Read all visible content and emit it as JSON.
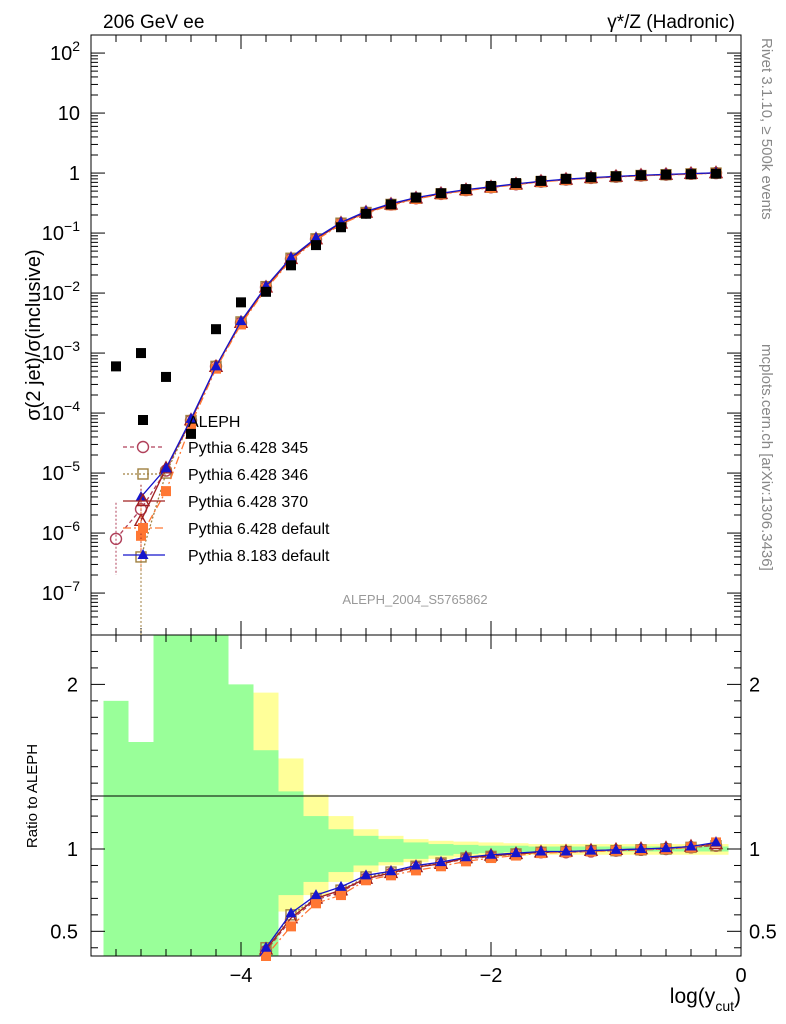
{
  "chart_data": {
    "type": "scatter",
    "top_left_label": "206 GeV ee",
    "top_right_label": "γ*/Z (Hadronic)",
    "right_label_1": "Rivet 3.1.10, ≥ 500k events",
    "right_label_2": "mcplots.cern.ch [arXiv:1306.3436]",
    "analysis_label": "ALEPH_2004_S5765862",
    "ylabel_main": "σ(2 jet)/σ(inclusive)",
    "ylabel_ratio": "Ratio to ALEPH",
    "xlabel": "log(y",
    "xlabel_sub": "cut",
    "xlabel_close": ")",
    "xlim": [
      -5.2,
      0
    ],
    "ylim_main": [
      2e-08,
      200
    ],
    "ylim_ratio": [
      0.35,
      2.3
    ],
    "x_ticks": [
      {
        "value": -4,
        "label": "−4"
      },
      {
        "value": -2,
        "label": "−2"
      },
      {
        "value": 0,
        "label": "0"
      }
    ],
    "y_ticks_main": [
      {
        "value": 100,
        "base": "10",
        "exp": "2"
      },
      {
        "value": 10,
        "base": "10",
        "exp": ""
      },
      {
        "value": 1,
        "base": "1",
        "exp": ""
      },
      {
        "value": 0.1,
        "base": "10",
        "exp": "−1"
      },
      {
        "value": 0.01,
        "base": "10",
        "exp": "−2"
      },
      {
        "value": 0.001,
        "base": "10",
        "exp": "−3"
      },
      {
        "value": 0.0001,
        "base": "10",
        "exp": "−4"
      },
      {
        "value": 1e-05,
        "base": "10",
        "exp": "−5"
      },
      {
        "value": 1e-06,
        "base": "10",
        "exp": "−6"
      },
      {
        "value": 1e-07,
        "base": "10",
        "exp": "−7"
      }
    ],
    "y_ticks_ratio": [
      {
        "value": 0.5,
        "label": "0.5"
      },
      {
        "value": 1,
        "label": "1"
      },
      {
        "value": 2,
        "label": "2"
      }
    ],
    "x": [
      -5.0,
      -4.8,
      -4.6,
      -4.4,
      -4.2,
      -4.0,
      -3.8,
      -3.6,
      -3.4,
      -3.2,
      -3.0,
      -2.8,
      -2.6,
      -2.4,
      -2.2,
      -2.0,
      -1.8,
      -1.6,
      -1.4,
      -1.2,
      -1.0,
      -0.8,
      -0.6,
      -0.4,
      -0.2
    ],
    "data": {
      "name": "ALEPH",
      "values": [
        0.0006,
        0.001,
        0.0004,
        4.5e-05,
        0.0025,
        0.007,
        0.0105,
        0.029,
        0.063,
        0.125,
        0.21,
        0.3,
        0.39,
        0.46,
        0.54,
        0.61,
        0.68,
        0.74,
        0.8,
        0.85,
        0.88,
        0.92,
        0.94,
        0.96,
        0.98
      ]
    },
    "bands": {
      "yellow": [
        [
          2.4,
          2.4
        ],
        [
          1.9,
          2.4
        ],
        [
          2.4,
          2.4
        ],
        [
          2.4,
          2.4
        ],
        [
          2.4,
          2.4
        ],
        [
          2.4,
          2.4
        ],
        [
          1.95,
          0.5
        ],
        [
          1.55,
          0.62
        ],
        [
          1.33,
          0.72
        ],
        [
          1.2,
          0.8
        ],
        [
          1.12,
          0.86
        ],
        [
          1.08,
          0.9
        ],
        [
          1.06,
          0.92
        ],
        [
          1.05,
          0.94
        ],
        [
          1.045,
          0.95
        ],
        [
          1.04,
          0.955
        ],
        [
          1.035,
          0.96
        ],
        [
          1.03,
          0.965
        ],
        [
          1.03,
          0.965
        ],
        [
          1.03,
          0.965
        ],
        [
          1.03,
          0.965
        ],
        [
          1.03,
          0.965
        ],
        [
          1.03,
          0.965
        ],
        [
          1.03,
          0.965
        ],
        [
          1.03,
          0.965
        ]
      ],
      "green": [
        [
          1.9,
          0.35
        ],
        [
          1.65,
          0.35
        ],
        [
          2.4,
          0.35
        ],
        [
          2.4,
          0.35
        ],
        [
          2.4,
          0.35
        ],
        [
          2.0,
          0.35
        ],
        [
          1.6,
          0.35
        ],
        [
          1.35,
          0.72
        ],
        [
          1.2,
          0.8
        ],
        [
          1.12,
          0.86
        ],
        [
          1.08,
          0.9
        ],
        [
          1.06,
          0.92
        ],
        [
          1.04,
          0.94
        ],
        [
          1.03,
          0.96
        ],
        [
          1.025,
          0.97
        ],
        [
          1.02,
          0.975
        ],
        [
          1.02,
          0.98
        ],
        [
          1.015,
          0.985
        ],
        [
          1.015,
          0.985
        ],
        [
          1.015,
          0.985
        ],
        [
          1.015,
          0.985
        ],
        [
          1.015,
          0.985
        ],
        [
          1.015,
          0.985
        ],
        [
          1.015,
          0.985
        ],
        [
          1.015,
          0.985
        ]
      ]
    },
    "series": [
      {
        "name": "Pythia 6.428 345",
        "color": "#b0405a",
        "marker": "open-circle",
        "dash": "4,3",
        "values": [
          8e-07,
          2.5e-06,
          1.1e-05,
          7.5e-05,
          0.0006,
          0.0032,
          0.0125,
          0.037,
          0.079,
          0.145,
          0.22,
          0.3,
          0.38,
          0.45,
          0.52,
          0.58,
          0.65,
          0.72,
          0.78,
          0.83,
          0.87,
          0.91,
          0.94,
          0.97,
          1.0
        ],
        "ratio": [
          null,
          null,
          null,
          null,
          null,
          null,
          0.38,
          0.57,
          0.69,
          0.74,
          0.82,
          0.85,
          0.89,
          0.91,
          0.94,
          0.955,
          0.97,
          0.98,
          0.98,
          0.985,
          0.99,
          0.995,
          1.0,
          1.01,
          1.02
        ]
      },
      {
        "name": "Pythia 6.428 346",
        "color": "#a08040",
        "marker": "open-square",
        "dash": "2,2",
        "values": [
          null,
          4e-07,
          1e-05,
          7.5e-05,
          0.0006,
          0.0033,
          0.0128,
          0.038,
          0.08,
          0.146,
          0.22,
          0.3,
          0.38,
          0.45,
          0.52,
          0.58,
          0.65,
          0.72,
          0.78,
          0.83,
          0.87,
          0.91,
          0.94,
          0.97,
          1.0
        ],
        "ratio": [
          null,
          null,
          null,
          null,
          null,
          null,
          0.4,
          0.6,
          0.7,
          0.75,
          0.83,
          0.86,
          0.895,
          0.915,
          0.945,
          0.955,
          0.97,
          0.98,
          0.985,
          0.99,
          0.99,
          0.995,
          1.0,
          1.01,
          1.02
        ]
      },
      {
        "name": "Pythia 6.428 370",
        "color": "#a02020",
        "marker": "open-triangle",
        "dash": "",
        "values": [
          null,
          1.6e-06,
          1.2e-05,
          7.6e-05,
          0.00059,
          0.0032,
          0.0124,
          0.037,
          0.079,
          0.145,
          0.22,
          0.3,
          0.38,
          0.45,
          0.52,
          0.58,
          0.65,
          0.72,
          0.78,
          0.83,
          0.87,
          0.91,
          0.94,
          0.97,
          1.0
        ],
        "ratio": [
          null,
          null,
          null,
          null,
          null,
          null,
          0.39,
          0.58,
          0.7,
          0.75,
          0.82,
          0.855,
          0.89,
          0.91,
          0.945,
          0.96,
          0.97,
          0.98,
          0.985,
          0.99,
          0.995,
          1.0,
          1.005,
          1.015,
          1.03
        ]
      },
      {
        "name": "Pythia 6.428 default",
        "color": "#ff7733",
        "marker": "filled-square",
        "dash": "8,3,2,3",
        "values": [
          null,
          9e-07,
          5e-06,
          6.5e-05,
          0.00055,
          0.003,
          0.0118,
          0.035,
          0.076,
          0.14,
          0.215,
          0.29,
          0.37,
          0.44,
          0.51,
          0.57,
          0.64,
          0.71,
          0.77,
          0.82,
          0.86,
          0.9,
          0.93,
          0.96,
          1.0
        ],
        "ratio": [
          null,
          null,
          null,
          null,
          null,
          null,
          0.35,
          0.53,
          0.67,
          0.72,
          0.81,
          0.84,
          0.87,
          0.895,
          0.925,
          0.945,
          0.96,
          0.975,
          0.98,
          0.985,
          0.99,
          0.995,
          1.0,
          1.01,
          1.04
        ]
      },
      {
        "name": "Pythia 8.183 default",
        "color": "#1515cc",
        "marker": "filled-triangle",
        "dash": "",
        "values": [
          null,
          4e-06,
          1.2e-05,
          8e-05,
          0.0006,
          0.0034,
          0.013,
          0.039,
          0.083,
          0.15,
          0.23,
          0.31,
          0.39,
          0.46,
          0.53,
          0.59,
          0.66,
          0.73,
          0.79,
          0.84,
          0.88,
          0.92,
          0.95,
          0.98,
          1.01
        ],
        "ratio": [
          null,
          null,
          null,
          null,
          null,
          null,
          0.4,
          0.61,
          0.72,
          0.77,
          0.84,
          0.865,
          0.9,
          0.92,
          0.95,
          0.965,
          0.975,
          0.985,
          0.985,
          0.99,
          0.995,
          1.0,
          1.005,
          1.015,
          1.04
        ]
      }
    ]
  }
}
